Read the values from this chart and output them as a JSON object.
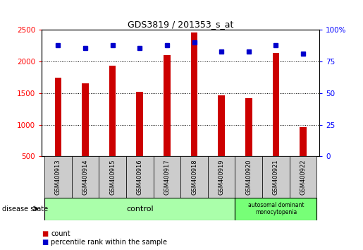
{
  "title": "GDS3819 / 201353_s_at",
  "samples": [
    "GSM400913",
    "GSM400914",
    "GSM400915",
    "GSM400916",
    "GSM400917",
    "GSM400918",
    "GSM400919",
    "GSM400920",
    "GSM400921",
    "GSM400922"
  ],
  "counts": [
    1750,
    1650,
    1930,
    1520,
    2100,
    2460,
    1460,
    1420,
    2140,
    960
  ],
  "percentile_ranks": [
    88,
    86,
    88,
    86,
    88,
    90,
    83,
    83,
    88,
    81
  ],
  "ylim_left": [
    500,
    2500
  ],
  "ylim_right": [
    0,
    100
  ],
  "yticks_left": [
    500,
    1000,
    1500,
    2000,
    2500
  ],
  "yticks_right": [
    0,
    25,
    50,
    75,
    100
  ],
  "bar_color": "#cc0000",
  "dot_color": "#0000cc",
  "bar_width": 0.25,
  "grid_color": "#000000",
  "control_label": "control",
  "disease_label": "autosomal dominant\nmonocytopenia",
  "control_bg": "#aaffaa",
  "disease_bg": "#77ff77",
  "tick_bg": "#cccccc",
  "legend_count_label": "count",
  "legend_pct_label": "percentile rank within the sample",
  "disease_state_label": "disease state"
}
